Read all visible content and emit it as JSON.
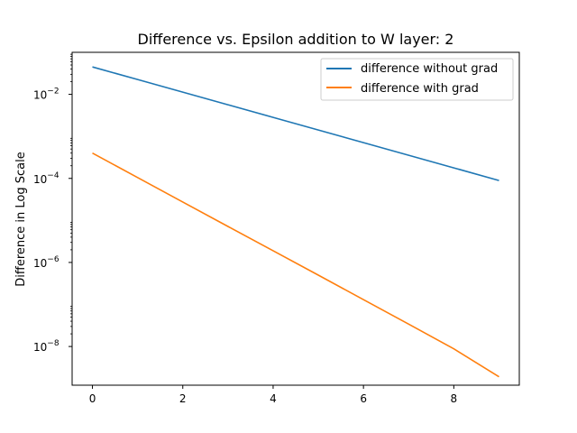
{
  "chart_data": {
    "type": "line",
    "title": "Difference vs. Epsilon addition to W layer: 2",
    "xlabel": "",
    "ylabel": "Difference in Log Scale",
    "yscale": "log",
    "x": [
      0,
      1,
      2,
      3,
      4,
      5,
      6,
      7,
      8,
      9
    ],
    "xlim": [
      -0.45,
      9.45
    ],
    "ylim": [
      1.2e-09,
      0.1
    ],
    "x_ticks": [
      {
        "value": 0,
        "label": "0"
      },
      {
        "value": 2,
        "label": "2"
      },
      {
        "value": 4,
        "label": "4"
      },
      {
        "value": 6,
        "label": "6"
      },
      {
        "value": 8,
        "label": "8"
      }
    ],
    "y_ticks": [
      {
        "value": 0.01,
        "base": "10",
        "exp": "−2"
      },
      {
        "value": 0.0001,
        "base": "10",
        "exp": "−4"
      },
      {
        "value": 1e-06,
        "base": "10",
        "exp": "−6"
      },
      {
        "value": 1e-08,
        "base": "10",
        "exp": "−8"
      }
    ],
    "grid": false,
    "legend_position": "top-right",
    "series": [
      {
        "name": "difference without grad",
        "color": "#1f77b4",
        "values": [
          0.045,
          0.0226,
          0.0113,
          0.00565,
          0.00283,
          0.00142,
          0.00071,
          0.000355,
          0.000178,
          8.9e-05
        ]
      },
      {
        "name": "difference with grad",
        "color": "#ff7f0e",
        "values": [
          0.0004,
          0.000105,
          2.75e-05,
          7.2e-06,
          1.9e-06,
          5e-07,
          1.3e-07,
          3.4e-08,
          8.8e-09,
          1.9e-09
        ]
      }
    ]
  }
}
